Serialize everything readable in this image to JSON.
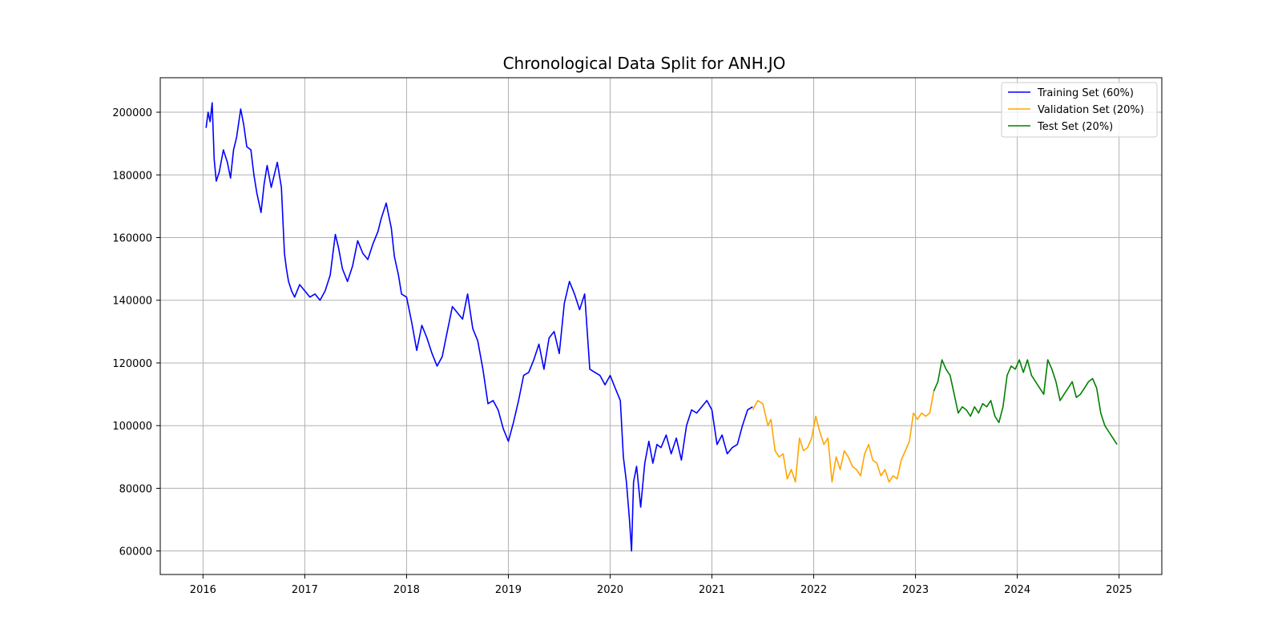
{
  "chart_data": {
    "type": "line",
    "title": "Chronological Data Split for ANH.JO",
    "xlabel": "",
    "ylabel": "",
    "xlim": [
      2015.58,
      2025.42
    ],
    "ylim": [
      52500,
      211000
    ],
    "x_ticks": [
      "2016",
      "2017",
      "2018",
      "2019",
      "2020",
      "2021",
      "2022",
      "2023",
      "2024",
      "2025"
    ],
    "y_ticks": [
      "60000",
      "80000",
      "100000",
      "120000",
      "140000",
      "160000",
      "180000",
      "200000"
    ],
    "grid": true,
    "legend_position": "top-right",
    "series": [
      {
        "name": "Training Set (60%)",
        "color": "#0000ff",
        "x": [
          2016.03,
          2016.05,
          2016.07,
          2016.09,
          2016.11,
          2016.13,
          2016.16,
          2016.2,
          2016.24,
          2016.27,
          2016.3,
          2016.33,
          2016.37,
          2016.4,
          2016.43,
          2016.47,
          2016.5,
          2016.53,
          2016.57,
          2016.6,
          2016.63,
          2016.67,
          2016.7,
          2016.73,
          2016.77,
          2016.8,
          2016.82,
          2016.84,
          2016.87,
          2016.9,
          2016.95,
          2017.0,
          2017.05,
          2017.1,
          2017.15,
          2017.2,
          2017.25,
          2017.3,
          2017.33,
          2017.37,
          2017.42,
          2017.47,
          2017.52,
          2017.57,
          2017.62,
          2017.67,
          2017.72,
          2017.75,
          2017.8,
          2017.85,
          2017.88,
          2017.92,
          2017.95,
          2018.0,
          2018.05,
          2018.1,
          2018.15,
          2018.2,
          2018.25,
          2018.3,
          2018.35,
          2018.4,
          2018.45,
          2018.5,
          2018.55,
          2018.6,
          2018.65,
          2018.7,
          2018.75,
          2018.8,
          2018.85,
          2018.9,
          2018.95,
          2019.0,
          2019.05,
          2019.1,
          2019.15,
          2019.2,
          2019.25,
          2019.3,
          2019.35,
          2019.4,
          2019.45,
          2019.5,
          2019.55,
          2019.6,
          2019.65,
          2019.7,
          2019.75,
          2019.8,
          2019.85,
          2019.9,
          2019.95,
          2020.0,
          2020.05,
          2020.1,
          2020.13,
          2020.16,
          2020.19,
          2020.21,
          2020.23,
          2020.26,
          2020.3,
          2020.34,
          2020.38,
          2020.42,
          2020.46,
          2020.5,
          2020.55,
          2020.6,
          2020.65,
          2020.7,
          2020.75,
          2020.8,
          2020.85,
          2020.9,
          2020.95,
          2021.0,
          2021.05,
          2021.1,
          2021.15,
          2021.2,
          2021.25,
          2021.3,
          2021.35,
          2021.4
        ],
        "y": [
          195000,
          200000,
          197000,
          203000,
          185000,
          178000,
          181000,
          188000,
          184000,
          179000,
          188000,
          192000,
          201000,
          196000,
          189000,
          188000,
          180000,
          174000,
          168000,
          177000,
          183000,
          176000,
          180000,
          184000,
          176000,
          155000,
          150000,
          146000,
          143000,
          141000,
          145000,
          143000,
          141000,
          142000,
          140000,
          143000,
          148000,
          161000,
          157000,
          150000,
          146000,
          151000,
          159000,
          155000,
          153000,
          158000,
          162000,
          166000,
          171000,
          163000,
          154000,
          148000,
          142000,
          141000,
          133000,
          124000,
          132000,
          128000,
          123000,
          119000,
          122000,
          130000,
          138000,
          136000,
          134000,
          142000,
          131000,
          127000,
          118000,
          107000,
          108000,
          105000,
          99000,
          95000,
          101000,
          108000,
          116000,
          117000,
          121000,
          126000,
          118000,
          128000,
          130000,
          123000,
          139000,
          146000,
          142000,
          137000,
          142000,
          118000,
          117000,
          116000,
          113000,
          116000,
          112000,
          108000,
          90000,
          82000,
          70000,
          60000,
          82000,
          87000,
          74000,
          88000,
          95000,
          88000,
          94000,
          93000,
          97000,
          91000,
          96000,
          89000,
          100000,
          105000,
          104000,
          106000,
          108000,
          105000,
          94000,
          97000,
          91000,
          93000,
          94000,
          100000,
          105000,
          106000
        ]
      },
      {
        "name": "Validation Set (20%)",
        "color": "#ffa500",
        "x": [
          2021.4,
          2021.45,
          2021.5,
          2021.55,
          2021.58,
          2021.62,
          2021.66,
          2021.7,
          2021.74,
          2021.78,
          2021.82,
          2021.86,
          2021.9,
          2021.94,
          2021.98,
          2022.02,
          2022.06,
          2022.1,
          2022.14,
          2022.18,
          2022.22,
          2022.26,
          2022.3,
          2022.34,
          2022.38,
          2022.42,
          2022.46,
          2022.5,
          2022.54,
          2022.58,
          2022.62,
          2022.66,
          2022.7,
          2022.74,
          2022.78,
          2022.82,
          2022.86,
          2022.9,
          2022.94,
          2022.98,
          2023.02,
          2023.06,
          2023.1,
          2023.14,
          2023.18
        ],
        "y": [
          105000,
          108000,
          107000,
          100000,
          102000,
          92000,
          90000,
          91000,
          83000,
          86000,
          82000,
          96000,
          92000,
          93000,
          96000,
          103000,
          98000,
          94000,
          96000,
          82000,
          90000,
          86000,
          92000,
          90000,
          87000,
          86000,
          84000,
          91000,
          94000,
          89000,
          88000,
          84000,
          86000,
          82000,
          84000,
          83000,
          89000,
          92000,
          95000,
          104000,
          102000,
          104000,
          103000,
          104000,
          111000
        ]
      },
      {
        "name": "Test Set (20%)",
        "color": "#008000",
        "x": [
          2023.18,
          2023.22,
          2023.26,
          2023.3,
          2023.34,
          2023.38,
          2023.42,
          2023.46,
          2023.5,
          2023.54,
          2023.58,
          2023.62,
          2023.66,
          2023.7,
          2023.74,
          2023.78,
          2023.82,
          2023.86,
          2023.9,
          2023.94,
          2023.98,
          2024.02,
          2024.06,
          2024.1,
          2024.14,
          2024.18,
          2024.22,
          2024.26,
          2024.3,
          2024.34,
          2024.38,
          2024.42,
          2024.46,
          2024.5,
          2024.54,
          2024.58,
          2024.62,
          2024.66,
          2024.7,
          2024.74,
          2024.78,
          2024.82,
          2024.86,
          2024.9,
          2024.94,
          2024.98
        ],
        "y": [
          111000,
          114000,
          121000,
          118000,
          116000,
          110000,
          104000,
          106000,
          105000,
          103000,
          106000,
          104000,
          107000,
          106000,
          108000,
          103000,
          101000,
          106000,
          116000,
          119000,
          118000,
          121000,
          117000,
          121000,
          116000,
          114000,
          112000,
          110000,
          121000,
          118000,
          114000,
          108000,
          110000,
          112000,
          114000,
          109000,
          110000,
          112000,
          114000,
          115000,
          112000,
          104000,
          100000,
          98000,
          96000,
          94000
        ]
      }
    ]
  }
}
